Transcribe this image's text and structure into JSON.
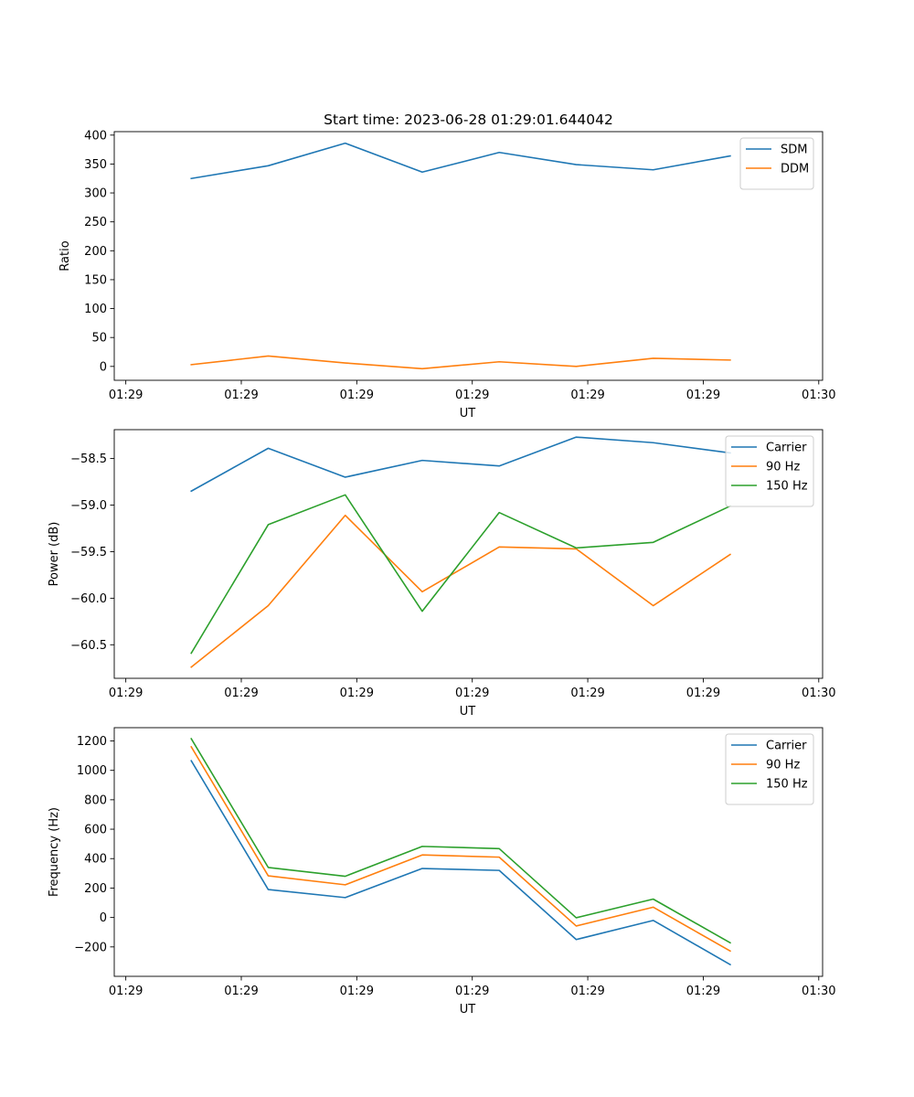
{
  "chart_data": [
    {
      "type": "line",
      "title": "Start time: 2023-06-28 01:29:01.644042",
      "xlabel": "UT",
      "ylabel": "Ratio",
      "x": [
        1,
        2,
        3,
        4,
        5,
        6,
        7,
        8
      ],
      "xlim": [
        0,
        9.2
      ],
      "x_ticks": [
        0.15,
        1.65,
        3.15,
        4.65,
        6.15,
        7.65,
        9.15
      ],
      "x_tick_labels": [
        "01:29",
        "01:29",
        "01:29",
        "01:29",
        "01:29",
        "01:29",
        "01:30"
      ],
      "ylim": [
        -24,
        406
      ],
      "y_ticks": [
        0,
        50,
        100,
        150,
        200,
        250,
        300,
        350,
        400
      ],
      "grid": false,
      "legend": "upper-right",
      "series": [
        {
          "name": "SDM",
          "color": "#1f77b4",
          "values": [
            325,
            347,
            386,
            336,
            370,
            349,
            340,
            364
          ]
        },
        {
          "name": "DDM",
          "color": "#ff7f0e",
          "values": [
            3,
            18,
            6,
            -4,
            8,
            0,
            14,
            11
          ]
        }
      ]
    },
    {
      "type": "line",
      "title": "",
      "xlabel": "UT",
      "ylabel": "Power (dB)",
      "x": [
        1,
        2,
        3,
        4,
        5,
        6,
        7,
        8
      ],
      "xlim": [
        0,
        9.2
      ],
      "x_ticks": [
        0.15,
        1.65,
        3.15,
        4.65,
        6.15,
        7.65,
        9.15
      ],
      "x_tick_labels": [
        "01:29",
        "01:29",
        "01:29",
        "01:29",
        "01:29",
        "01:29",
        "01:30"
      ],
      "ylim": [
        -60.86,
        -58.19
      ],
      "y_ticks": [
        -60.5,
        -60.0,
        -59.5,
        -59.0,
        -58.5
      ],
      "y_tick_labels": [
        "−60.5",
        "−60.0",
        "−59.5",
        "−59.0",
        "−58.5"
      ],
      "grid": false,
      "legend": "upper-right",
      "series": [
        {
          "name": "Carrier",
          "color": "#1f77b4",
          "values": [
            -58.85,
            -58.39,
            -58.7,
            -58.52,
            -58.58,
            -58.27,
            -58.33,
            -58.44
          ]
        },
        {
          "name": "90 Hz",
          "color": "#ff7f0e",
          "values": [
            -60.74,
            -60.08,
            -59.11,
            -59.93,
            -59.45,
            -59.47,
            -60.08,
            -59.53
          ]
        },
        {
          "name": "150 Hz",
          "color": "#2ca02c",
          "values": [
            -60.59,
            -59.21,
            -58.89,
            -60.14,
            -59.08,
            -59.46,
            -59.4,
            -59.01
          ]
        }
      ]
    },
    {
      "type": "line",
      "title": "",
      "xlabel": "UT",
      "ylabel": "Frequency (Hz)",
      "x": [
        1,
        2,
        3,
        4,
        5,
        6,
        7,
        8
      ],
      "xlim": [
        0,
        9.2
      ],
      "x_ticks": [
        0.15,
        1.65,
        3.15,
        4.65,
        6.15,
        7.65,
        9.15
      ],
      "x_tick_labels": [
        "01:29",
        "01:29",
        "01:29",
        "01:29",
        "01:29",
        "01:29",
        "01:30"
      ],
      "ylim": [
        -400,
        1290
      ],
      "y_ticks": [
        -200,
        0,
        200,
        400,
        600,
        800,
        1000,
        1200
      ],
      "y_tick_labels": [
        "−200",
        "0",
        "200",
        "400",
        "600",
        "800",
        "1000",
        "1200"
      ],
      "grid": false,
      "legend": "upper-right",
      "series": [
        {
          "name": "Carrier",
          "color": "#1f77b4",
          "values": [
            1065,
            190,
            135,
            333,
            320,
            -150,
            -20,
            -320
          ]
        },
        {
          "name": "90 Hz",
          "color": "#ff7f0e",
          "values": [
            1160,
            283,
            222,
            425,
            410,
            -58,
            70,
            -228
          ]
        },
        {
          "name": "150 Hz",
          "color": "#2ca02c",
          "values": [
            1215,
            340,
            280,
            483,
            468,
            -2,
            125,
            -172
          ]
        }
      ]
    }
  ]
}
